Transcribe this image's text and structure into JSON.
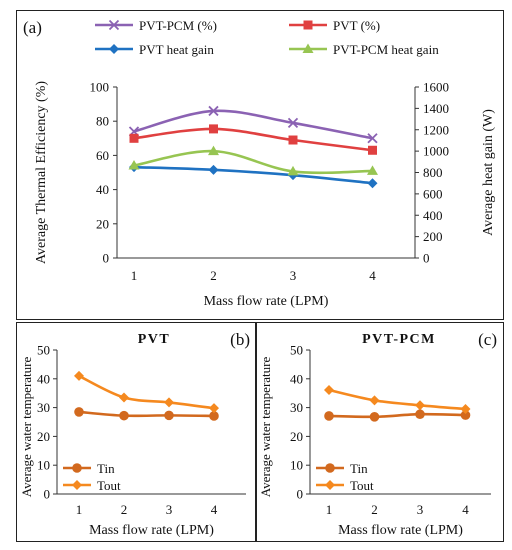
{
  "chart_data": [
    {
      "panel_label": "(a)",
      "type": "line",
      "xlabel": "Mass flow rate (LPM)",
      "ylabel_left": "Average Thermal Efficiency (%)",
      "ylabel_right": "Average heat gain (W)",
      "categories": [
        "1",
        "2",
        "3",
        "4"
      ],
      "ylim_left": [
        0,
        100
      ],
      "yticks_left": [
        "0",
        "20",
        "40",
        "60",
        "80",
        "100"
      ],
      "ylim_right": [
        0,
        1600
      ],
      "yticks_right": [
        "0",
        "200",
        "400",
        "600",
        "800",
        "1000",
        "1200",
        "1400",
        "1600"
      ],
      "legend_position": "top",
      "series": [
        {
          "name": "PVT-PCM (%)",
          "axis": "left",
          "color": "#8b62b3",
          "marker": "x",
          "values": [
            74,
            86,
            79,
            70
          ]
        },
        {
          "name": "PVT (%)",
          "axis": "left",
          "color": "#e04040",
          "marker": "square",
          "values": [
            70,
            75.5,
            69,
            63
          ]
        },
        {
          "name": "PVT heat gain",
          "axis": "right",
          "color": "#1f72c2",
          "marker": "diamond",
          "values": [
            850,
            825,
            775,
            700
          ]
        },
        {
          "name": "PVT-PCM heat gain",
          "axis": "right",
          "color": "#97c552",
          "marker": "triangle",
          "values": [
            865,
            1000,
            810,
            815
          ]
        }
      ]
    },
    {
      "panel_label": "(b)",
      "title": "PVT",
      "type": "line",
      "xlabel": "Mass flow rate (LPM)",
      "ylabel": "Average water temperature",
      "categories": [
        "1",
        "2",
        "3",
        "4"
      ],
      "ylim": [
        0,
        50
      ],
      "yticks": [
        "0",
        "10",
        "20",
        "30",
        "40",
        "50"
      ],
      "legend_position": "bottom-left",
      "series": [
        {
          "name": "Tin",
          "color": "#d2691e",
          "marker": "circle",
          "values": [
            28.5,
            27.2,
            27.3,
            27.1
          ]
        },
        {
          "name": "Tout",
          "color": "#f5891f",
          "marker": "diamond",
          "values": [
            41,
            33.5,
            31.8,
            29.8
          ]
        }
      ]
    },
    {
      "panel_label": "(c)",
      "title": "PVT-PCM",
      "type": "line",
      "xlabel": "Mass flow rate (LPM)",
      "ylabel": "Average water temperature",
      "categories": [
        "1",
        "2",
        "3",
        "4"
      ],
      "ylim": [
        0,
        50
      ],
      "yticks": [
        "0",
        "10",
        "20",
        "30",
        "40",
        "50"
      ],
      "legend_position": "bottom-left",
      "series": [
        {
          "name": "Tin",
          "color": "#d2691e",
          "marker": "circle",
          "values": [
            27.1,
            26.8,
            27.7,
            27.4
          ]
        },
        {
          "name": "Tout",
          "color": "#f5891f",
          "marker": "diamond",
          "values": [
            36.1,
            32.5,
            30.8,
            29.5
          ]
        }
      ]
    }
  ]
}
